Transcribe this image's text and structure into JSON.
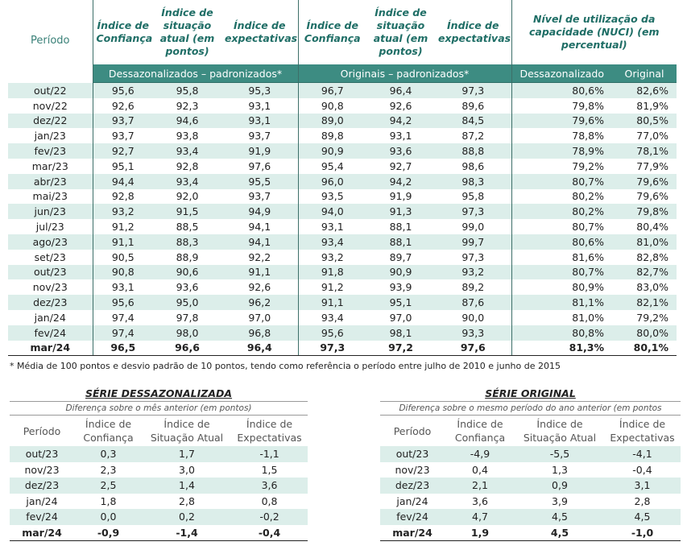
{
  "main_table": {
    "header": {
      "period": "Período",
      "columns": [
        "Índice de Confiança",
        "Índice de situação atual (em pontos)",
        "Índice de expectativas",
        "Índice de Confiança",
        "Índice de situação atual (em pontos)",
        "Índice de expectativas"
      ],
      "nuci": "Nível de utilização da capacidade (NUCI) (em percentual)",
      "groups": [
        "Dessazonalizados – padronizados*",
        "Originais – padronizados*"
      ],
      "nuci_sub": [
        "Dessazonalizado",
        "Original"
      ]
    },
    "rows": [
      [
        "out/22",
        "95,6",
        "95,8",
        "95,3",
        "96,7",
        "96,4",
        "97,3",
        "80,6%",
        "82,6%"
      ],
      [
        "nov/22",
        "92,6",
        "92,3",
        "93,1",
        "90,8",
        "92,6",
        "89,6",
        "79,8%",
        "81,9%"
      ],
      [
        "dez/22",
        "93,7",
        "94,6",
        "93,1",
        "89,0",
        "94,2",
        "84,5",
        "79,6%",
        "80,5%"
      ],
      [
        "jan/23",
        "93,7",
        "93,8",
        "93,7",
        "89,8",
        "93,1",
        "87,2",
        "78,8%",
        "77,0%"
      ],
      [
        "fev/23",
        "92,7",
        "93,4",
        "91,9",
        "90,9",
        "93,6",
        "88,8",
        "78,9%",
        "78,1%"
      ],
      [
        "mar/23",
        "95,1",
        "92,8",
        "97,6",
        "95,4",
        "92,7",
        "98,6",
        "79,2%",
        "77,9%"
      ],
      [
        "abr/23",
        "94,4",
        "93,4",
        "95,5",
        "96,0",
        "94,2",
        "98,3",
        "80,7%",
        "79,6%"
      ],
      [
        "mai/23",
        "92,8",
        "92,0",
        "93,7",
        "93,5",
        "91,9",
        "95,8",
        "80,2%",
        "79,6%"
      ],
      [
        "jun/23",
        "93,2",
        "91,5",
        "94,9",
        "94,0",
        "91,3",
        "97,3",
        "80,2%",
        "79,8%"
      ],
      [
        "jul/23",
        "91,2",
        "88,5",
        "94,1",
        "93,1",
        "88,1",
        "99,0",
        "80,7%",
        "80,4%"
      ],
      [
        "ago/23",
        "91,1",
        "88,3",
        "94,1",
        "93,4",
        "88,1",
        "99,7",
        "80,6%",
        "81,0%"
      ],
      [
        "set/23",
        "90,5",
        "88,9",
        "92,2",
        "93,2",
        "89,7",
        "97,3",
        "81,6%",
        "82,8%"
      ],
      [
        "out/23",
        "90,8",
        "90,6",
        "91,1",
        "91,8",
        "90,9",
        "93,2",
        "80,7%",
        "82,7%"
      ],
      [
        "nov/23",
        "93,1",
        "93,6",
        "92,6",
        "91,2",
        "93,9",
        "89,2",
        "80,9%",
        "83,0%"
      ],
      [
        "dez/23",
        "95,6",
        "95,0",
        "96,2",
        "91,1",
        "95,1",
        "87,6",
        "81,1%",
        "82,1%"
      ],
      [
        "jan/24",
        "97,4",
        "97,8",
        "97,0",
        "93,4",
        "97,0",
        "90,0",
        "81,0%",
        "79,2%"
      ],
      [
        "fev/24",
        "97,4",
        "98,0",
        "96,8",
        "95,6",
        "98,1",
        "93,3",
        "80,8%",
        "80,0%"
      ],
      [
        "mar/24",
        "96,5",
        "96,6",
        "96,4",
        "97,3",
        "97,2",
        "97,6",
        "81,3%",
        "80,1%"
      ]
    ]
  },
  "footnote": "* Média de 100 pontos e desvio padrão de 10 pontos, tendo como referência o período entre julho de 2010 e junho de 2015",
  "tables": [
    {
      "title": "SÉRIE DESSAZONALIZADA",
      "subtitle": "Diferença sobre o mês anterior (em pontos)",
      "header": [
        "Período",
        "Índice de Confiança",
        "Índice de Situação Atual",
        "Índice de Expectativas"
      ],
      "rows": [
        [
          "out/23",
          "0,3",
          "1,7",
          "-1,1"
        ],
        [
          "nov/23",
          "2,3",
          "3,0",
          "1,5"
        ],
        [
          "dez/23",
          "2,5",
          "1,4",
          "3,6"
        ],
        [
          "jan/24",
          "1,8",
          "2,8",
          "0,8"
        ],
        [
          "fev/24",
          "0,0",
          "0,2",
          "-0,2"
        ],
        [
          "mar/24",
          "-0,9",
          "-1,4",
          "-0,4"
        ]
      ]
    },
    {
      "title": "SÉRIE ORIGINAL",
      "subtitle": "Diferença sobre o mesmo período do ano anterior (em pontos",
      "header": [
        "Período",
        "Índice de Confiança",
        "Índice de Situação Atual",
        "Índice de Expectativas"
      ],
      "rows": [
        [
          "out/23",
          "-4,9",
          "-5,5",
          "-4,1"
        ],
        [
          "nov/23",
          "0,4",
          "1,3",
          "-0,4"
        ],
        [
          "dez/23",
          "2,1",
          "0,9",
          "3,1"
        ],
        [
          "jan/24",
          "3,6",
          "3,9",
          "2,8"
        ],
        [
          "fev/24",
          "4,7",
          "4,5",
          "4,5"
        ],
        [
          "mar/24",
          "1,9",
          "4,5",
          "-1,0"
        ]
      ]
    }
  ]
}
